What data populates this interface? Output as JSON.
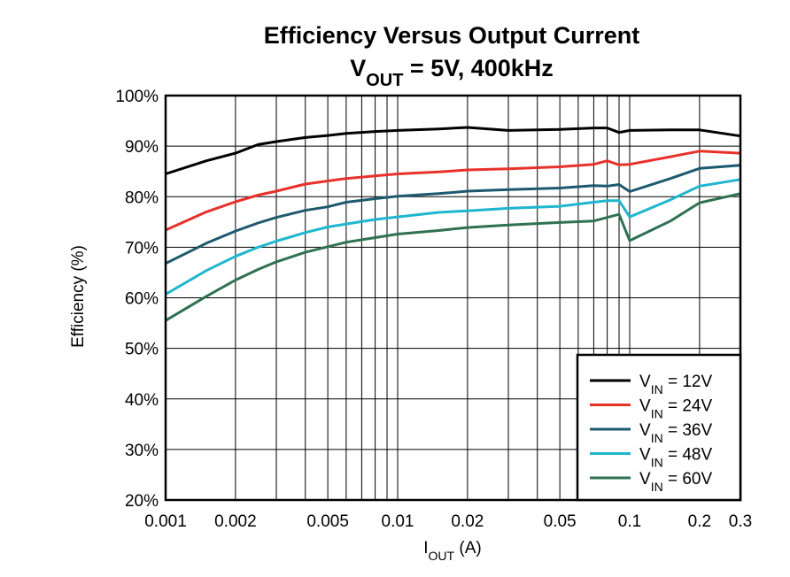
{
  "chart_data": {
    "type": "line",
    "title_main": "Efficiency Versus Output Current",
    "subtitle": {
      "v": "V",
      "v_sub": "OUT",
      "rest": " = 5V, 400kHz"
    },
    "ylabel": "Efficiency (%)",
    "xlabel": {
      "i": "I",
      "i_sub": "OUT",
      "rest": " (A)"
    },
    "x_scale": "log",
    "xlim": [
      0.001,
      0.3
    ],
    "ylim": [
      20,
      100
    ],
    "x_ticks": [
      0.001,
      0.002,
      0.005,
      0.01,
      0.02,
      0.05,
      0.1,
      0.2,
      0.3
    ],
    "x_tick_labels": [
      "0.001",
      "0.002",
      "0.005",
      "0.01",
      "0.02",
      "0.05",
      "0.1",
      "0.2",
      "0.3"
    ],
    "y_ticks": [
      20,
      30,
      40,
      50,
      60,
      70,
      80,
      90,
      100
    ],
    "y_tick_labels": [
      "20%",
      "30%",
      "40%",
      "50%",
      "60%",
      "70%",
      "80%",
      "90%",
      "100%"
    ],
    "grid": true,
    "legend_position": "bottom-right",
    "series": [
      {
        "name_prefix": "V",
        "name_sub": "IN",
        "name_rest": " = 12V",
        "color": "#000000",
        "x": [
          0.001,
          0.0015,
          0.002,
          0.0025,
          0.003,
          0.004,
          0.005,
          0.006,
          0.008,
          0.01,
          0.015,
          0.02,
          0.03,
          0.05,
          0.07,
          0.08,
          0.09,
          0.1,
          0.15,
          0.2,
          0.3
        ],
        "y": [
          84.5,
          87.1,
          88.6,
          90.3,
          90.9,
          91.7,
          92.1,
          92.5,
          92.9,
          93.1,
          93.4,
          93.7,
          93.1,
          93.3,
          93.6,
          93.6,
          92.7,
          93.1,
          93.2,
          93.2,
          92.0
        ]
      },
      {
        "name_prefix": "V",
        "name_sub": "IN",
        "name_rest": " = 24V",
        "color": "#e8312b",
        "x": [
          0.001,
          0.0015,
          0.002,
          0.0025,
          0.003,
          0.004,
          0.005,
          0.006,
          0.008,
          0.01,
          0.015,
          0.02,
          0.03,
          0.05,
          0.07,
          0.08,
          0.09,
          0.1,
          0.15,
          0.2,
          0.3
        ],
        "y": [
          73.4,
          77.0,
          79.0,
          80.3,
          81.1,
          82.5,
          83.1,
          83.6,
          84.1,
          84.5,
          84.9,
          85.3,
          85.5,
          85.9,
          86.4,
          87.1,
          86.3,
          86.4,
          87.9,
          89.0,
          88.6
        ]
      },
      {
        "name_prefix": "V",
        "name_sub": "IN",
        "name_rest": " = 36V",
        "color": "#1d5a6e",
        "x": [
          0.001,
          0.0015,
          0.002,
          0.0025,
          0.003,
          0.004,
          0.005,
          0.006,
          0.008,
          0.01,
          0.015,
          0.02,
          0.03,
          0.05,
          0.07,
          0.08,
          0.09,
          0.1,
          0.15,
          0.2,
          0.3
        ],
        "y": [
          66.8,
          70.8,
          73.2,
          74.8,
          75.9,
          77.3,
          78.0,
          78.9,
          79.6,
          80.1,
          80.6,
          81.1,
          81.4,
          81.7,
          82.2,
          82.1,
          82.4,
          81.0,
          83.6,
          85.6,
          86.2
        ]
      },
      {
        "name_prefix": "V",
        "name_sub": "IN",
        "name_rest": " = 48V",
        "color": "#1fb6ce",
        "x": [
          0.001,
          0.0015,
          0.002,
          0.0025,
          0.003,
          0.004,
          0.005,
          0.006,
          0.008,
          0.01,
          0.015,
          0.02,
          0.03,
          0.05,
          0.07,
          0.08,
          0.09,
          0.1,
          0.15,
          0.2,
          0.3
        ],
        "y": [
          60.7,
          65.4,
          68.2,
          70.0,
          71.2,
          72.9,
          74.0,
          74.6,
          75.5,
          76.0,
          76.9,
          77.2,
          77.7,
          78.1,
          78.9,
          79.2,
          79.2,
          76.0,
          79.4,
          82.1,
          83.4
        ]
      },
      {
        "name_prefix": "V",
        "name_sub": "IN",
        "name_rest": " = 60V",
        "color": "#2f7150",
        "x": [
          0.001,
          0.0015,
          0.002,
          0.0025,
          0.003,
          0.004,
          0.005,
          0.006,
          0.008,
          0.01,
          0.015,
          0.02,
          0.03,
          0.05,
          0.07,
          0.08,
          0.09,
          0.1,
          0.15,
          0.2,
          0.3
        ],
        "y": [
          55.5,
          60.3,
          63.5,
          65.6,
          67.1,
          69.0,
          70.1,
          71.0,
          71.9,
          72.6,
          73.3,
          73.9,
          74.4,
          74.9,
          75.2,
          75.9,
          76.5,
          71.3,
          75.2,
          78.8,
          80.6
        ]
      }
    ]
  }
}
